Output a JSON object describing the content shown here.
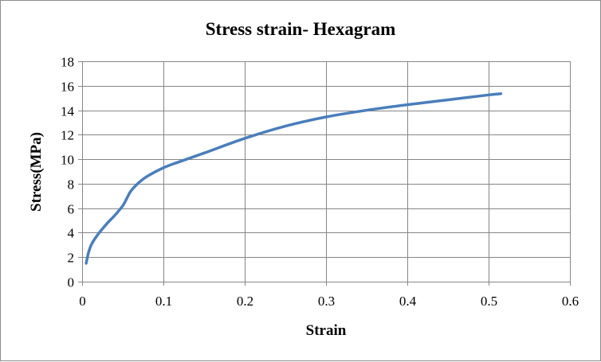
{
  "chart_data": {
    "type": "line",
    "title": "Stress strain- Hexagram",
    "xlabel": "Strain",
    "ylabel": "Stress(MPa)",
    "xlim": [
      0,
      0.6
    ],
    "ylim": [
      0,
      18
    ],
    "x_ticks": [
      "0",
      "0.1",
      "0.2",
      "0.3",
      "0.4",
      "0.5",
      "0.6"
    ],
    "y_ticks": [
      "0",
      "2",
      "4",
      "6",
      "8",
      "10",
      "12",
      "14",
      "16",
      "18"
    ],
    "grid": true,
    "legend": "none",
    "series": [
      {
        "color": "#4a7ebb",
        "x": [
          0.005,
          0.008,
          0.012,
          0.02,
          0.03,
          0.04,
          0.05,
          0.055,
          0.06,
          0.07,
          0.08,
          0.1,
          0.12,
          0.15,
          0.2,
          0.25,
          0.3,
          0.35,
          0.4,
          0.45,
          0.5,
          0.515
        ],
        "y": [
          1.5,
          2.4,
          3.1,
          3.9,
          4.7,
          5.4,
          6.2,
          6.8,
          7.4,
          8.1,
          8.6,
          9.3,
          9.8,
          10.5,
          11.7,
          12.7,
          13.45,
          14.0,
          14.45,
          14.85,
          15.25,
          15.35
        ]
      }
    ]
  }
}
